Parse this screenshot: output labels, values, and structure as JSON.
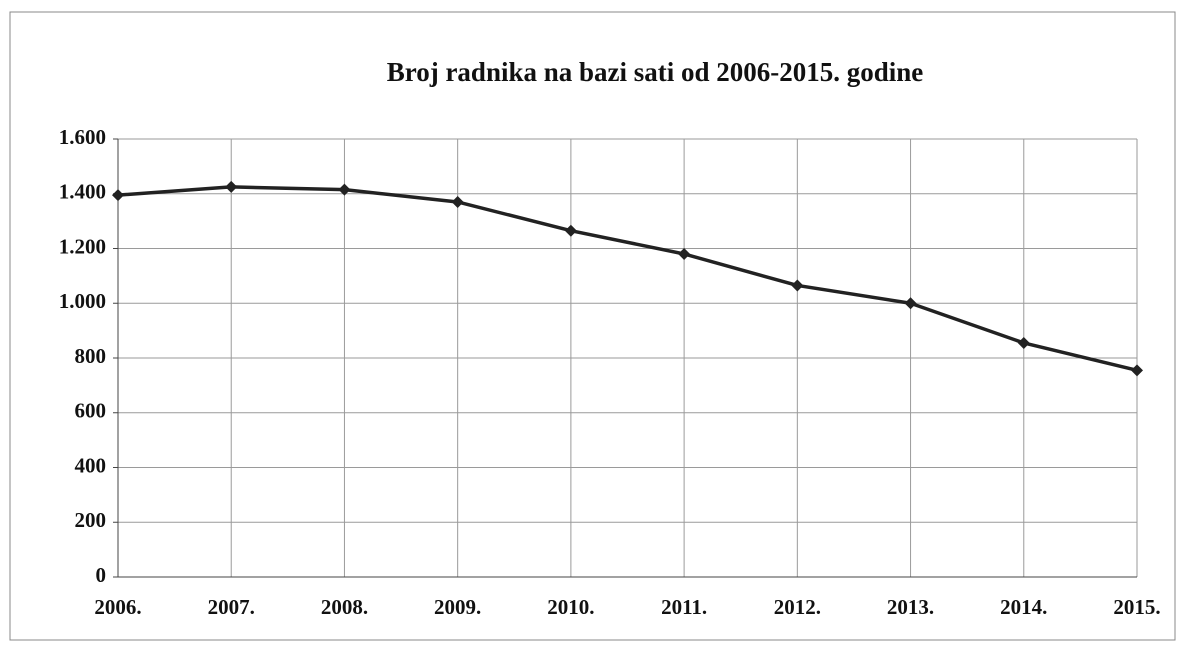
{
  "chart_data": {
    "type": "line",
    "title": "Broj radnika na bazi sati od 2006-2015. godine",
    "categories": [
      "2006.",
      "2007.",
      "2008.",
      "2009.",
      "2010.",
      "2011.",
      "2012.",
      "2013.",
      "2014.",
      "2015."
    ],
    "values": [
      1395,
      1425,
      1415,
      1370,
      1265,
      1180,
      1065,
      1000,
      855,
      755
    ],
    "color": "#222222",
    "ylim": [
      0,
      1600
    ],
    "yticks": [
      0,
      200,
      400,
      600,
      800,
      {
        "value": 1000,
        "label": "1.000"
      },
      {
        "value": 1200,
        "label": "1.200"
      },
      {
        "value": 1400,
        "label": "1.400"
      },
      {
        "value": 1600,
        "label": "1.600"
      }
    ],
    "grid": true
  }
}
